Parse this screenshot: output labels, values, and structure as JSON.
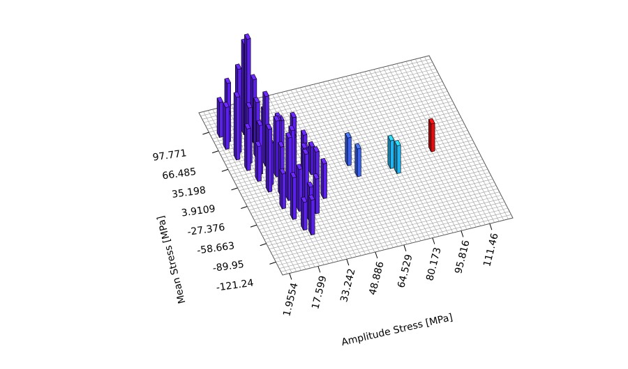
{
  "chart_data": {
    "type": "bar3d",
    "x_label": "Amplitude Stress [MPa]",
    "y_label": "Mean Stress [MPa]",
    "xlim": [
      -1.8,
      124.1
    ],
    "ylim": [
      -143.1,
      130.7
    ],
    "zlim": [
      0,
      20
    ],
    "xticks": [
      1.9554,
      17.599,
      33.242,
      48.886,
      64.529,
      80.173,
      95.816,
      111.46
    ],
    "yticks": [
      97.771,
      66.485,
      35.198,
      3.9109,
      -27.376,
      -58.663,
      -89.95,
      -121.24
    ],
    "grid": true,
    "bars": [
      {
        "x": 3,
        "y": 90,
        "value": 5,
        "color": "#5a22e8"
      },
      {
        "x": 3,
        "y": 70,
        "value": 6,
        "color": "#5a22e8"
      },
      {
        "x": 5.5,
        "y": 80,
        "value": 4,
        "color": "#5a22e8"
      },
      {
        "x": 5.5,
        "y": 50,
        "value": 9,
        "color": "#5a22e8"
      },
      {
        "x": 8,
        "y": 95,
        "value": 7,
        "color": "#5a22e8"
      },
      {
        "x": 8,
        "y": 60,
        "value": 12,
        "color": "#5a22e8"
      },
      {
        "x": 8,
        "y": 30,
        "value": 6,
        "color": "#5a22e8"
      },
      {
        "x": 10.5,
        "y": 75,
        "value": 10,
        "color": "#5a22e8"
      },
      {
        "x": 10.5,
        "y": 40,
        "value": 8,
        "color": "#5a22e8"
      },
      {
        "x": 10.5,
        "y": 10,
        "value": 5,
        "color": "#5a22e8"
      },
      {
        "x": 13,
        "y": 60,
        "value": 16,
        "color": "#5a22e8"
      },
      {
        "x": 13,
        "y": 20,
        "value": 7,
        "color": "#5a22e8"
      },
      {
        "x": 13,
        "y": -10,
        "value": 9,
        "color": "#5a22e8"
      },
      {
        "x": 15.5,
        "y": 85,
        "value": 13,
        "color": "#5a22e8"
      },
      {
        "x": 15.5,
        "y": 45,
        "value": 8,
        "color": "#5a22e8"
      },
      {
        "x": 15.5,
        "y": 0,
        "value": 6,
        "color": "#5a22e8"
      },
      {
        "x": 15.5,
        "y": -40,
        "value": 5,
        "color": "#5a22e8"
      },
      {
        "x": 18,
        "y": 70,
        "value": 9,
        "color": "#5a22e8"
      },
      {
        "x": 18,
        "y": 30,
        "value": 10,
        "color": "#5a22e8"
      },
      {
        "x": 18,
        "y": -20,
        "value": 7,
        "color": "#5a22e8"
      },
      {
        "x": 18,
        "y": -60,
        "value": 6,
        "color": "#5a22e8"
      },
      {
        "x": 20.5,
        "y": 50,
        "value": 6,
        "color": "#5a22e8"
      },
      {
        "x": 20.5,
        "y": 10,
        "value": 8,
        "color": "#5a22e8"
      },
      {
        "x": 20.5,
        "y": -30,
        "value": 9,
        "color": "#5a22e8"
      },
      {
        "x": 20.5,
        "y": -80,
        "value": 4,
        "color": "#5a22e8"
      },
      {
        "x": 23,
        "y": 60,
        "value": 5,
        "color": "#5a22e8"
      },
      {
        "x": 23,
        "y": 20,
        "value": 7,
        "color": "#5a22e8"
      },
      {
        "x": 23,
        "y": -50,
        "value": 6,
        "color": "#5a22e8"
      },
      {
        "x": 23,
        "y": -90,
        "value": 5,
        "color": "#5a22e8"
      },
      {
        "x": 25.5,
        "y": 35,
        "value": 6,
        "color": "#5a22e8"
      },
      {
        "x": 25.5,
        "y": -10,
        "value": 8,
        "color": "#5a22e8"
      },
      {
        "x": 25.5,
        "y": -70,
        "value": 5,
        "color": "#5a22e8"
      },
      {
        "x": 28,
        "y": 40,
        "value": 5,
        "color": "#5a22e8"
      },
      {
        "x": 28,
        "y": 0,
        "value": 6,
        "color": "#5a22e8"
      },
      {
        "x": 28,
        "y": -40,
        "value": 7,
        "color": "#5a22e8"
      },
      {
        "x": 30.5,
        "y": 20,
        "value": 4,
        "color": "#5a22e8"
      },
      {
        "x": 30.5,
        "y": -20,
        "value": 6,
        "color": "#5a22e8"
      },
      {
        "x": 30.5,
        "y": -60,
        "value": 5,
        "color": "#5a22e8"
      },
      {
        "x": 33,
        "y": 30,
        "value": 6,
        "color": "#5a22e8"
      },
      {
        "x": 33,
        "y": -10,
        "value": 5,
        "color": "#5a22e8"
      },
      {
        "x": 35.5,
        "y": 10,
        "value": 5,
        "color": "#5a22e8"
      },
      {
        "x": 35.5,
        "y": -30,
        "value": 6,
        "color": "#5a22e8"
      },
      {
        "x": 38,
        "y": 0,
        "value": 4,
        "color": "#5a22e8"
      },
      {
        "x": 38,
        "y": -40,
        "value": 5,
        "color": "#5a22e8"
      },
      {
        "x": 58,
        "y": 0,
        "value": 4,
        "color": "#3a62f2"
      },
      {
        "x": 60,
        "y": -20,
        "value": 4,
        "color": "#3a62f2"
      },
      {
        "x": 78,
        "y": -20,
        "value": 4,
        "color": "#22b4f0"
      },
      {
        "x": 80,
        "y": -30,
        "value": 4,
        "color": "#22b4f0"
      },
      {
        "x": 102,
        "y": -10,
        "value": 4,
        "color": "#e01010"
      }
    ]
  }
}
